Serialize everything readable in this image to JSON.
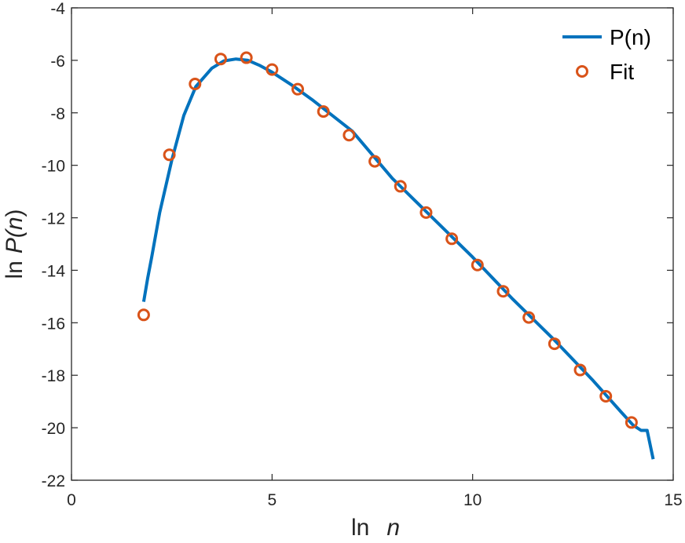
{
  "chart_data": {
    "type": "line",
    "xlabel": {
      "prefix": "ln",
      "var": "n"
    },
    "ylabel": {
      "prefix": "ln",
      "var_pre": "P(",
      "var_mid": "n",
      "var_post": ")"
    },
    "xlim": [
      0,
      15
    ],
    "ylim": [
      -22,
      -4
    ],
    "xticks": [
      0,
      5,
      10,
      15
    ],
    "xtick_labels": [
      "0",
      "5",
      "10",
      "15"
    ],
    "yticks": [
      -22,
      -20,
      -18,
      -16,
      -14,
      -12,
      -10,
      -8,
      -6,
      -4
    ],
    "ytick_labels": [
      "-22",
      "-20",
      "-18",
      "-16",
      "-14",
      "-12",
      "-10",
      "-8",
      "-6",
      "-4"
    ],
    "grid": false,
    "legend_position": "top-right",
    "series": [
      {
        "name": "P(n)",
        "style": "line",
        "color": "#0072BD",
        "x": [
          1.8,
          1.9,
          2.0,
          2.2,
          2.5,
          2.8,
          3.1,
          3.5,
          3.8,
          4.1,
          4.4,
          4.7,
          5.0,
          5.5,
          6.0,
          6.5,
          7.0,
          8.0,
          9.0,
          10.0,
          11.0,
          12.0,
          13.0,
          13.7,
          14.0,
          14.2,
          14.35,
          14.5
        ],
        "y": [
          -15.2,
          -14.3,
          -13.5,
          -11.8,
          -9.8,
          -8.1,
          -7.0,
          -6.3,
          -6.02,
          -5.95,
          -6.0,
          -6.2,
          -6.45,
          -6.95,
          -7.5,
          -8.1,
          -8.7,
          -10.5,
          -12.0,
          -13.5,
          -15.1,
          -16.6,
          -18.2,
          -19.4,
          -19.9,
          -20.1,
          -20.1,
          -21.2
        ]
      },
      {
        "name": "Fit",
        "style": "marker",
        "color": "#D95319",
        "x": [
          1.8,
          2.44,
          3.08,
          3.72,
          4.36,
          5.0,
          5.64,
          6.28,
          6.92,
          7.56,
          8.2,
          8.84,
          9.48,
          10.12,
          10.76,
          11.4,
          12.04,
          12.68,
          13.32,
          13.96
        ],
        "y": [
          -15.7,
          -9.6,
          -6.9,
          -5.95,
          -5.9,
          -6.35,
          -7.1,
          -7.95,
          -8.85,
          -9.85,
          -10.8,
          -11.8,
          -12.8,
          -13.8,
          -14.8,
          -15.8,
          -16.8,
          -17.8,
          -18.8,
          -19.8
        ]
      }
    ]
  }
}
